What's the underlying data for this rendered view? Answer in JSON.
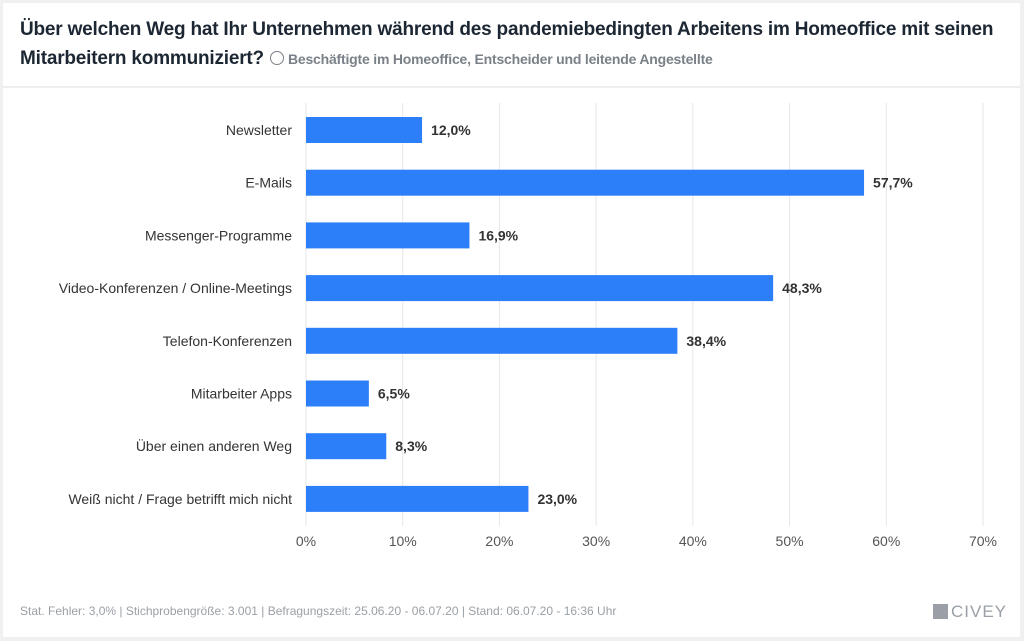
{
  "header": {
    "title": "Über welchen Weg hat Ihr Unternehmen während des pandemiebedingten Arbeitens im Homeoffice mit seinen Mitarbeitern kommuniziert?",
    "subtitle": "Beschäftigte im Homeoffice, Entscheider und leitende Angestellte"
  },
  "footer": {
    "text": "Stat. Fehler: 3,0% | Stichprobengröße: 3.001 | Befragungszeit: 25.06.20 - 06.07.20 | Stand: 06.07.20 - 16:36 Uhr",
    "logo": "CIVEY"
  },
  "colors": {
    "bar": "#2d7ff9",
    "grid": "#e6e6e6"
  },
  "chart_data": {
    "type": "bar",
    "orientation": "horizontal",
    "title": "Über welchen Weg hat Ihr Unternehmen während des pandemiebedingten Arbeitens im Homeoffice mit seinen Mitarbeitern kommuniziert?",
    "categories": [
      "Newsletter",
      "E-Mails",
      "Messenger-Programme",
      "Video-Konferenzen / Online-Meetings",
      "Telefon-Konferenzen",
      "Mitarbeiter Apps",
      "Über einen anderen Weg",
      "Weiß nicht / Frage betrifft mich nicht"
    ],
    "values": [
      12.0,
      57.7,
      16.9,
      48.3,
      38.4,
      6.5,
      8.3,
      23.0
    ],
    "labels": [
      "12,0%",
      "57,7%",
      "16,9%",
      "48,3%",
      "38,4%",
      "6,5%",
      "8,3%",
      "23,0%"
    ],
    "xlim": [
      0,
      70
    ],
    "ticks": [
      "0%",
      "10%",
      "20%",
      "30%",
      "40%",
      "50%",
      "60%",
      "70%"
    ],
    "grid": true
  }
}
